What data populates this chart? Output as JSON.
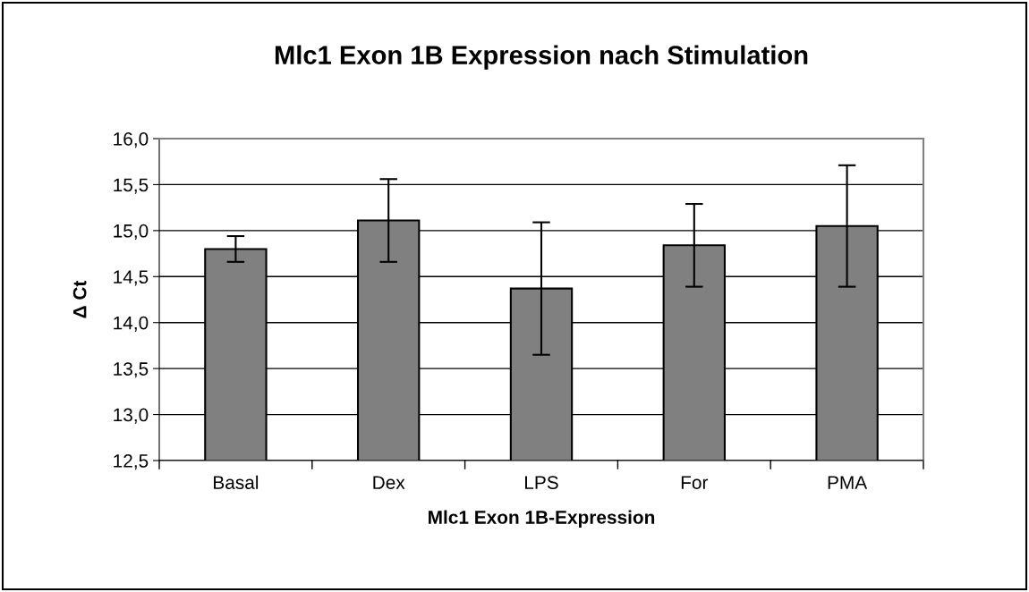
{
  "chart_data": {
    "type": "bar",
    "title": "Mlc1 Exon 1B Expression nach Stimulation",
    "xlabel": "Mlc1 Exon 1B-Expression",
    "ylabel": "Δ Ct",
    "categories": [
      "Basal",
      "Dex",
      "LPS",
      "For",
      "PMA"
    ],
    "values": [
      14.8,
      15.11,
      14.37,
      14.84,
      15.05
    ],
    "errors": [
      0.14,
      0.45,
      0.72,
      0.45,
      0.66
    ],
    "color": "#808080",
    "ylim": [
      12.5,
      16.0
    ],
    "yticks": [
      {
        "value": 12.5,
        "label": "12,5"
      },
      {
        "value": 13.0,
        "label": "13,0"
      },
      {
        "value": 13.5,
        "label": "13,5"
      },
      {
        "value": 14.0,
        "label": "14,0"
      },
      {
        "value": 14.5,
        "label": "14,5"
      },
      {
        "value": 15.0,
        "label": "15,0"
      },
      {
        "value": 15.5,
        "label": "15,5"
      },
      {
        "value": 16.0,
        "label": "16,0"
      }
    ],
    "grid": "y",
    "legend": false
  }
}
